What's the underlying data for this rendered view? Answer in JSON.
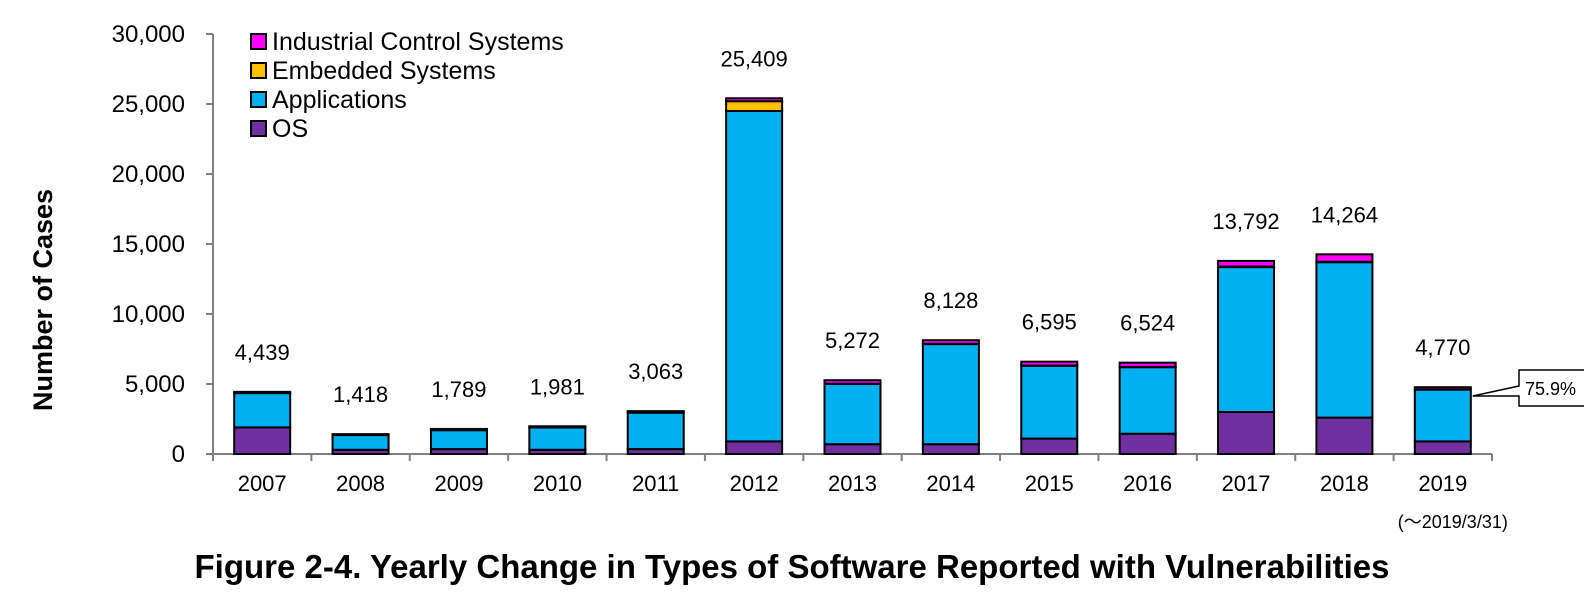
{
  "caption": "Figure 2-4.  Yearly Change in Types of Software Reported with Vulnerabilities",
  "chart_data": {
    "type": "bar",
    "stacked": true,
    "categories": [
      "2007",
      "2008",
      "2009",
      "2010",
      "2011",
      "2012",
      "2013",
      "2014",
      "2015",
      "2016",
      "2017",
      "2018",
      "2019"
    ],
    "series": [
      {
        "name": "OS",
        "color": "#7030a0",
        "values": [
          1900,
          300,
          350,
          300,
          350,
          900,
          700,
          700,
          1100,
          1450,
          3000,
          2600,
          900
        ]
      },
      {
        "name": "Applications",
        "color": "#00b0f0",
        "values": [
          2450,
          1050,
          1350,
          1600,
          2600,
          23600,
          4300,
          7150,
          5200,
          4750,
          10350,
          11100,
          3700
        ]
      },
      {
        "name": "Embedded Systems",
        "color": "#ffc000",
        "values": [
          20,
          20,
          20,
          20,
          20,
          700,
          20,
          20,
          20,
          20,
          40,
          30,
          10
        ]
      },
      {
        "name": "Industrial Control Systems",
        "color": "#ff00ff",
        "values": [
          69,
          48,
          69,
          61,
          93,
          209,
          252,
          258,
          275,
          304,
          402,
          534,
          160
        ]
      }
    ],
    "totals": [
      "4,439",
      "1,418",
      "1,789",
      "1,981",
      "3,063",
      "25,409",
      "5,272",
      "8,128",
      "6,595",
      "6,524",
      "13,792",
      "14,264",
      "4,770"
    ],
    "y_ticks": [
      "0",
      "5,000",
      "10,000",
      "15,000",
      "20,000",
      "25,000",
      "30,000"
    ],
    "ylim": [
      0,
      30000
    ],
    "ylabel": "Number of Cases",
    "xlabel": "",
    "legend_position": "top-left",
    "annotations": {
      "callout_2019": "75.9%",
      "note_2019": "(～2019/3/31)"
    },
    "grid": false
  }
}
